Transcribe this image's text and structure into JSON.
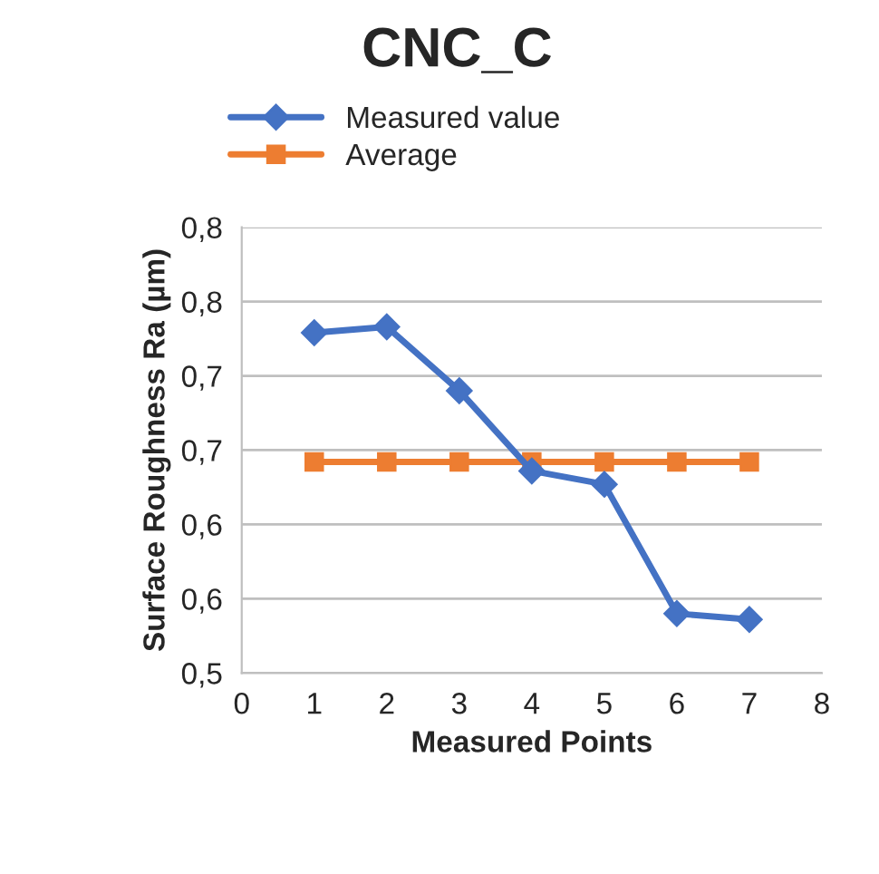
{
  "chart_data": {
    "type": "line",
    "title": "CNC_C",
    "xlabel": "Measured Points",
    "ylabel": "Surface Roughness Ra (µm)",
    "x": [
      1,
      2,
      3,
      4,
      5,
      6,
      7
    ],
    "series": [
      {
        "name": "Measured value",
        "color": "#4472c4",
        "marker": "diamond",
        "values": [
          0.729,
          0.733,
          0.69,
          0.636,
          0.627,
          0.54,
          0.536
        ]
      },
      {
        "name": "Average",
        "color": "#ed7d31",
        "marker": "square",
        "values": [
          0.642,
          0.642,
          0.642,
          0.642,
          0.642,
          0.642,
          0.642
        ]
      }
    ],
    "xlim": [
      0,
      8
    ],
    "xticks": [
      0,
      1,
      2,
      3,
      4,
      5,
      6,
      7,
      8
    ],
    "ylim": [
      0.5,
      0.8
    ],
    "yticks": [
      {
        "value": 0.5,
        "label": "0,5"
      },
      {
        "value": 0.55,
        "label": "0,6"
      },
      {
        "value": 0.6,
        "label": "0,6"
      },
      {
        "value": 0.65,
        "label": "0,7"
      },
      {
        "value": 0.7,
        "label": "0,7"
      },
      {
        "value": 0.75,
        "label": "0,8"
      },
      {
        "value": 0.8,
        "label": "0,8"
      }
    ],
    "grid": "y",
    "legend": "top",
    "line_style": "solid"
  }
}
